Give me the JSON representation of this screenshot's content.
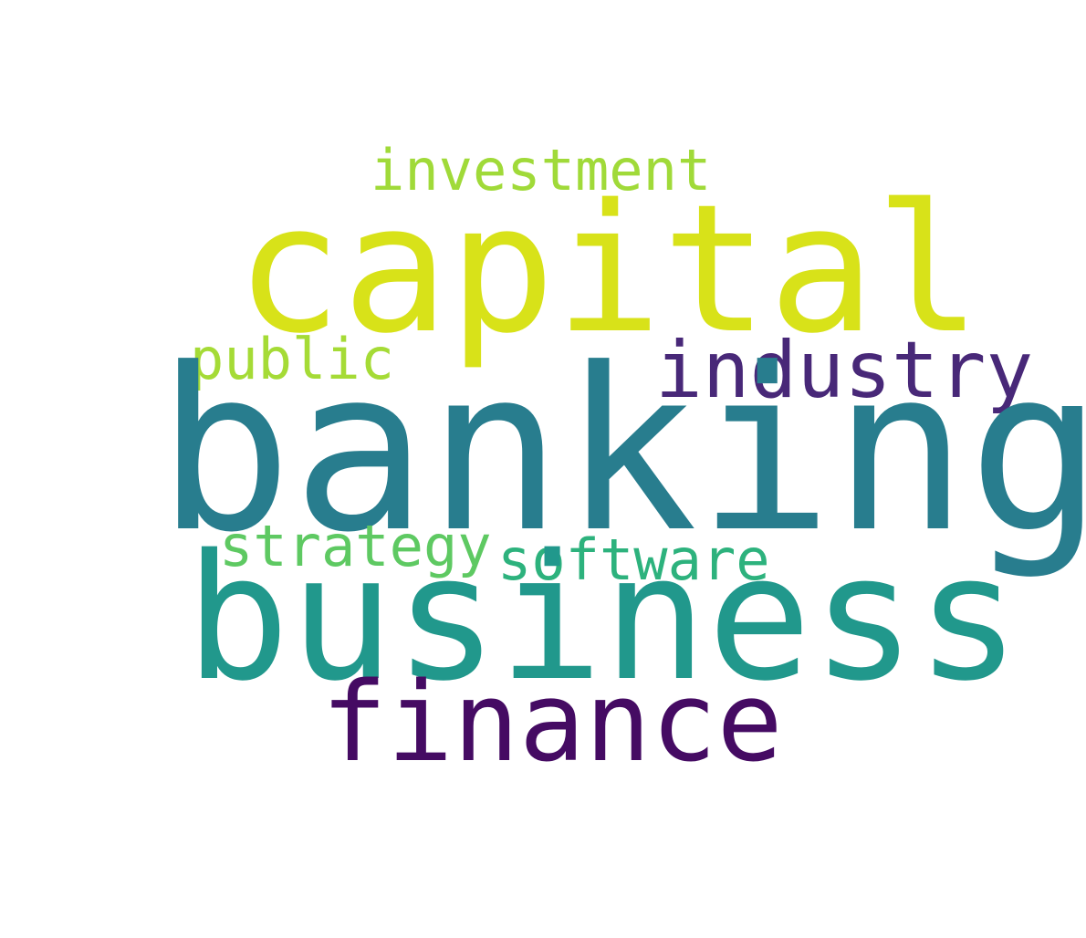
{
  "words": [
    {
      "id": "investment",
      "text": "investment",
      "color": "#a0da39"
    },
    {
      "id": "capital",
      "text": "capital",
      "color": "#d8e219"
    },
    {
      "id": "public",
      "text": "public",
      "color": "#a5db36"
    },
    {
      "id": "industry",
      "text": "industry",
      "color": "#482878"
    },
    {
      "id": "banking",
      "text": "banking",
      "color": "#287d8e"
    },
    {
      "id": "strategy",
      "text": "strategy",
      "color": "#5ec962"
    },
    {
      "id": "software",
      "text": "software",
      "color": "#2db27d"
    },
    {
      "id": "business",
      "text": "business",
      "color": "#21988c"
    },
    {
      "id": "finance",
      "text": "finance",
      "color": "#450b63"
    }
  ]
}
